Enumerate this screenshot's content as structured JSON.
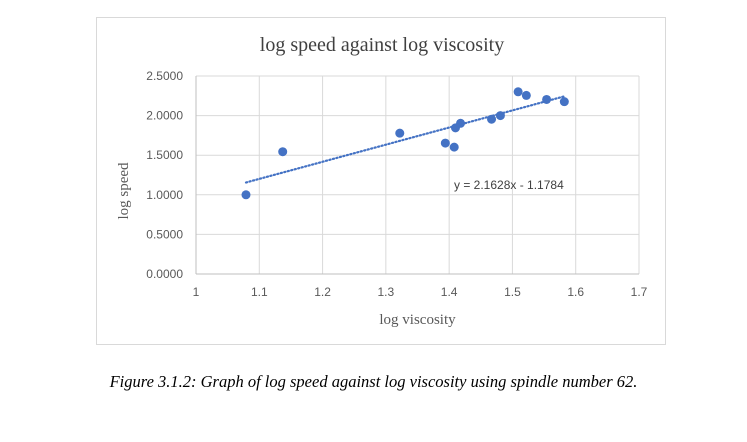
{
  "chart_data": {
    "type": "scatter",
    "title": "log speed against log viscosity",
    "xlabel": "log viscosity",
    "ylabel": "log speed",
    "xlim": [
      1,
      1.7
    ],
    "ylim": [
      0,
      2.5
    ],
    "x_ticks": [
      1,
      1.1,
      1.2,
      1.3,
      1.4,
      1.5,
      1.6,
      1.7
    ],
    "x_tick_labels": [
      "1",
      "1.1",
      "1.2",
      "1.3",
      "1.4",
      "1.5",
      "1.6",
      "1.7"
    ],
    "y_ticks": [
      0,
      0.5,
      1,
      1.5,
      2,
      2.5
    ],
    "y_tick_labels": [
      "0.0000",
      "0.5000",
      "1.0000",
      "1.5000",
      "2.0000",
      "2.5000"
    ],
    "grid": true,
    "series": [
      {
        "name": "data",
        "color": "#4472c4",
        "points": [
          {
            "x": 1.079,
            "y": 1.0
          },
          {
            "x": 1.137,
            "y": 1.544
          },
          {
            "x": 1.322,
            "y": 1.778
          },
          {
            "x": 1.394,
            "y": 1.653
          },
          {
            "x": 1.408,
            "y": 1.602
          },
          {
            "x": 1.41,
            "y": 1.845
          },
          {
            "x": 1.418,
            "y": 1.903
          },
          {
            "x": 1.467,
            "y": 1.954
          },
          {
            "x": 1.481,
            "y": 2.0
          },
          {
            "x": 1.509,
            "y": 2.301
          },
          {
            "x": 1.522,
            "y": 2.255
          },
          {
            "x": 1.554,
            "y": 2.204
          },
          {
            "x": 1.582,
            "y": 2.176
          }
        ]
      }
    ],
    "trendline": {
      "slope": 2.1628,
      "intercept": -1.1784,
      "x_range": [
        1.079,
        1.582
      ],
      "style": "dotted",
      "color": "#4472c4",
      "label": "y = 2.1628x - 1.1784"
    }
  },
  "caption": "Figure 3.1.2: Graph of log speed against log viscosity using spindle number 62."
}
